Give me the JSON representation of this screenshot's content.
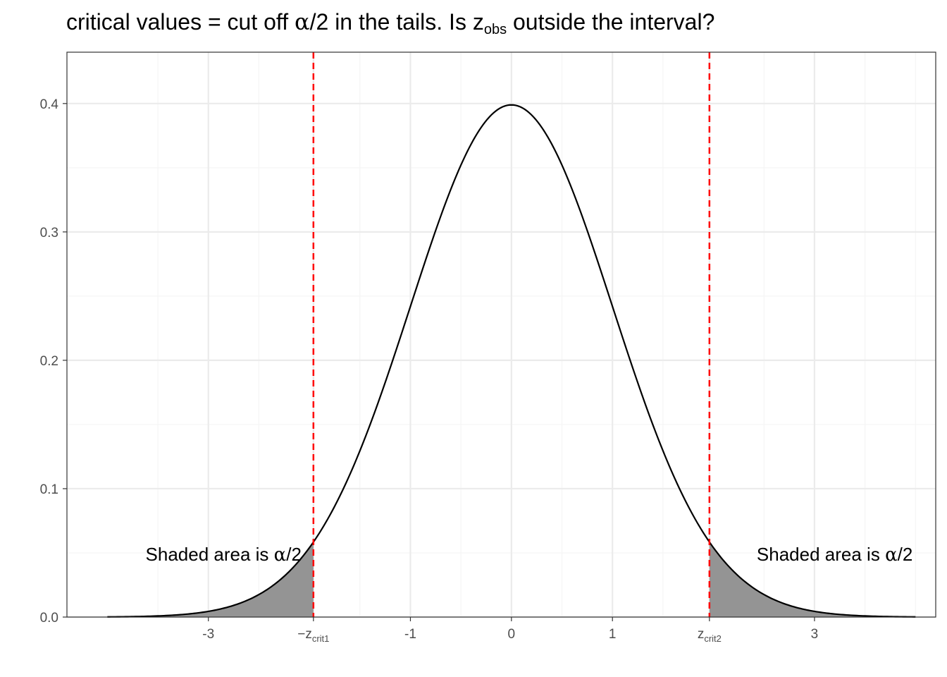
{
  "chart_data": {
    "type": "area",
    "title": {
      "prefix": "critical values = cut off ",
      "alpha": "α",
      "slash_two": "/2",
      "middle": " in the tails. Is z",
      "sub": "obs",
      "suffix": " outside the interval?"
    },
    "xlabel": "",
    "ylabel": "",
    "series": [
      {
        "curve": "standard normal density",
        "x": [
          -4,
          -3.5,
          -3,
          -2.5,
          -2,
          -1.5,
          -1,
          -0.5,
          0,
          0.5,
          1,
          1.5,
          2,
          2.5,
          3,
          3.5,
          4
        ],
        "y": [
          0.0001,
          0.0009,
          0.0044,
          0.0175,
          0.054,
          0.1295,
          0.242,
          0.3521,
          0.3989,
          0.3521,
          0.242,
          0.1295,
          0.054,
          0.0175,
          0.0044,
          0.0009,
          0.0001
        ]
      }
    ],
    "xlim": [
      -4.4,
      4.2
    ],
    "ylim": [
      0,
      0.44
    ],
    "x_ticks": [
      {
        "value": -3,
        "label": "-3"
      },
      {
        "value": -1.96,
        "label": "−z",
        "sub": "crit1"
      },
      {
        "value": -1,
        "label": "-1"
      },
      {
        "value": 0,
        "label": "0"
      },
      {
        "value": 1,
        "label": "1"
      },
      {
        "value": 1.96,
        "label": "z",
        "sub": "crit2"
      },
      {
        "value": 3,
        "label": "3"
      }
    ],
    "x_minor_grid": [
      -3.5,
      -2.5,
      -1.5,
      -0.5,
      0.5,
      1.5,
      2.5,
      3.5,
      4
    ],
    "y_ticks": [
      {
        "value": 0,
        "label": "0.0"
      },
      {
        "value": 0.1,
        "label": "0.1"
      },
      {
        "value": 0.2,
        "label": "0.2"
      },
      {
        "value": 0.3,
        "label": "0.3"
      },
      {
        "value": 0.4,
        "label": "0.4"
      }
    ],
    "critical_values": [
      -1.96,
      1.96
    ],
    "shaded_tails": [
      {
        "from": -4,
        "to": -1.96
      },
      {
        "from": 1.96,
        "to": 4
      }
    ],
    "annotations": [
      {
        "text": "Shaded area is ",
        "alpha": "α",
        "tail": "/2",
        "x": -2.85,
        "y": 0.049
      },
      {
        "text": "Shaded area is ",
        "alpha": "α",
        "tail": "/2",
        "x": 3.2,
        "y": 0.049
      }
    ],
    "grid": true,
    "colors": {
      "curve": "#000000",
      "shade": "#949494",
      "critical_line": "#ff0000",
      "grid_major": "#ebebeb",
      "grid_minor": "#f5f5f5",
      "panel_border": "#333333",
      "tick_text": "#4d4d4d"
    }
  }
}
